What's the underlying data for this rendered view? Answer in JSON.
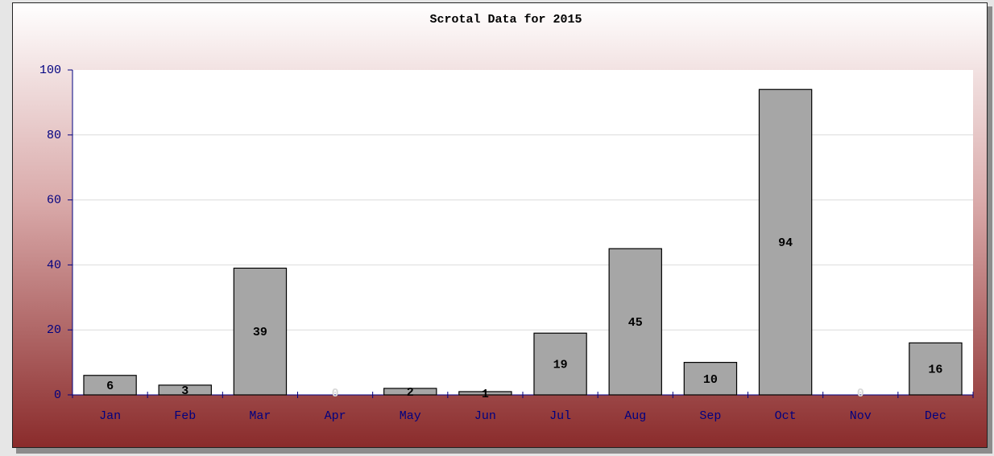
{
  "chart_data": {
    "type": "bar",
    "title": "Scrotal Data for 2015",
    "categories": [
      "Jan",
      "Feb",
      "Mar",
      "Apr",
      "May",
      "Jun",
      "Jul",
      "Aug",
      "Sep",
      "Oct",
      "Nov",
      "Dec"
    ],
    "values": [
      6,
      3,
      39,
      0,
      2,
      1,
      19,
      45,
      10,
      94,
      0,
      16
    ],
    "color": "#a6a6a6",
    "ylim": [
      0,
      100
    ],
    "yticks": [
      0,
      20,
      40,
      60,
      80,
      100
    ],
    "grid": true
  }
}
